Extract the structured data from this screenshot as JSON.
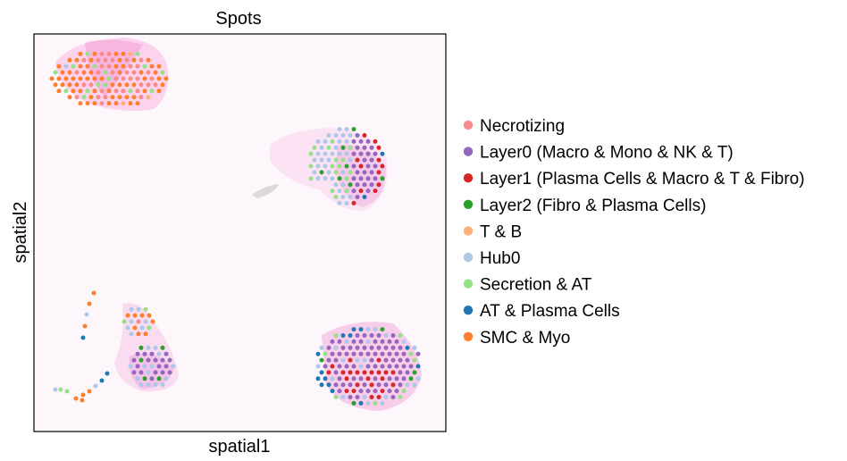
{
  "chart_data": {
    "type": "scatter",
    "title": "Spots",
    "xlabel": "spatial1",
    "ylabel": "spatial2",
    "grid": false,
    "ticks_visible": false,
    "legend_position": "right",
    "background_tissue": "pink-stained tissue image behind spots",
    "legend": [
      {
        "name": "Necrotizing",
        "color": "#f88c8c"
      },
      {
        "name": "Layer0 (Macro & Mono & NK & T)",
        "color": "#9467bd"
      },
      {
        "name": "Layer1 (Plasma Cells & Macro & T & Fibro)",
        "color": "#d62728"
      },
      {
        "name": "Layer2 (Fibro & Plasma Cells)",
        "color": "#2ca02c"
      },
      {
        "name": "T & B",
        "color": "#ffaf78"
      },
      {
        "name": "Hub0",
        "color": "#aec7e8"
      },
      {
        "name": "Secretion & AT",
        "color": "#98df8a"
      },
      {
        "name": "AT & Plasma Cells",
        "color": "#1f77b4"
      },
      {
        "name": "SMC & Myo",
        "color": "#ff7f2e"
      }
    ]
  }
}
